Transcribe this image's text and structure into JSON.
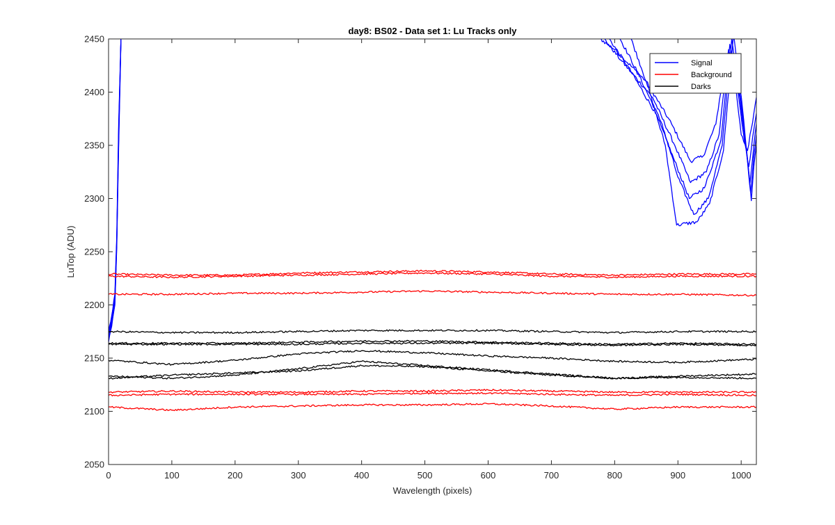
{
  "chart_data": {
    "type": "line",
    "title": "day8: BS02 - Data set 1: Lu Tracks only",
    "xlabel": "Wavelength (pixels)",
    "ylabel": "LuTop (ADU)",
    "xlim": [
      0,
      1024
    ],
    "ylim": [
      2050,
      2450
    ],
    "xticks": [
      0,
      100,
      200,
      300,
      400,
      500,
      600,
      700,
      800,
      900,
      1000
    ],
    "yticks": [
      2050,
      2100,
      2150,
      2200,
      2250,
      2300,
      2350,
      2400,
      2450
    ],
    "grid": false,
    "legend_position": "top-right",
    "colors": {
      "Signal": "#0000ff",
      "Background": "#ff0000",
      "Darks": "#000000"
    },
    "legend": [
      "Signal",
      "Background",
      "Darks"
    ],
    "series": [
      {
        "group": "Signal",
        "x": [
          0,
          5,
          10,
          13,
          16,
          20
        ],
        "y": [
          2170,
          2185,
          2205,
          2260,
          2360,
          2460
        ]
      },
      {
        "group": "Signal",
        "x": [
          0,
          5,
          10,
          13,
          16,
          20
        ],
        "y": [
          2165,
          2180,
          2200,
          2255,
          2350,
          2460
        ]
      },
      {
        "group": "Signal",
        "x": [
          0,
          5,
          10,
          13,
          16,
          20
        ],
        "y": [
          2175,
          2190,
          2210,
          2265,
          2370,
          2460
        ]
      },
      {
        "group": "Signal",
        "x": [
          0,
          5,
          10,
          13,
          16,
          20
        ],
        "y": [
          2168,
          2182,
          2202,
          2258,
          2355,
          2460
        ]
      },
      {
        "group": "Signal",
        "x": [
          0,
          5,
          10,
          13,
          16,
          20
        ],
        "y": [
          2172,
          2188,
          2207,
          2262,
          2365,
          2460
        ]
      },
      {
        "group": "Signal",
        "x": [
          755,
          800,
          850,
          890,
          920,
          940,
          960,
          975,
          990,
          1000,
          1010,
          1020,
          1024
        ],
        "y": [
          2460,
          2440,
          2410,
          2370,
          2335,
          2340,
          2370,
          2430,
          2410,
          2360,
          2345,
          2380,
          2395
        ]
      },
      {
        "group": "Signal",
        "x": [
          770,
          810,
          860,
          895,
          920,
          945,
          965,
          980,
          995,
          1005,
          1012,
          1020,
          1024
        ],
        "y": [
          2460,
          2430,
          2395,
          2350,
          2315,
          2325,
          2360,
          2440,
          2400,
          2355,
          2330,
          2365,
          2380
        ]
      },
      {
        "group": "Signal",
        "x": [
          780,
          820,
          865,
          895,
          918,
          942,
          968,
          982,
          998,
          1008,
          1014,
          1020,
          1024
        ],
        "y": [
          2460,
          2425,
          2380,
          2335,
          2300,
          2310,
          2355,
          2445,
          2395,
          2345,
          2315,
          2350,
          2370
        ]
      },
      {
        "group": "Signal",
        "x": [
          800,
          835,
          875,
          900,
          925,
          948,
          970,
          985,
          1000,
          1010,
          1015,
          1020,
          1024
        ],
        "y": [
          2460,
          2420,
          2370,
          2320,
          2285,
          2300,
          2350,
          2450,
          2390,
          2335,
          2305,
          2340,
          2360
        ]
      },
      {
        "group": "Signal",
        "x": [
          820,
          850,
          880,
          898,
          930,
          950,
          972,
          988,
          1002,
          1012,
          1016,
          1020,
          1024
        ],
        "y": [
          2460,
          2410,
          2350,
          2275,
          2278,
          2295,
          2345,
          2455,
          2385,
          2325,
          2298,
          2330,
          2350
        ]
      },
      {
        "group": "Background",
        "x": [
          0,
          100,
          200,
          300,
          400,
          500,
          600,
          700,
          800,
          900,
          1024
        ],
        "y": [
          2229,
          2228,
          2228,
          2230,
          2231,
          2232,
          2231,
          2229,
          2228,
          2229,
          2229
        ]
      },
      {
        "group": "Background",
        "x": [
          0,
          100,
          200,
          300,
          400,
          500,
          600,
          700,
          800,
          900,
          1024
        ],
        "y": [
          2227,
          2226,
          2227,
          2228,
          2229,
          2230,
          2229,
          2227,
          2226,
          2227,
          2227
        ]
      },
      {
        "group": "Background",
        "x": [
          0,
          100,
          200,
          300,
          400,
          500,
          600,
          700,
          800,
          900,
          1024
        ],
        "y": [
          2210,
          2210,
          2211,
          2211,
          2212,
          2213,
          2212,
          2211,
          2210,
          2210,
          2209
        ]
      },
      {
        "group": "Background",
        "x": [
          0,
          100,
          200,
          300,
          400,
          500,
          600,
          700,
          800,
          900,
          1024
        ],
        "y": [
          2118,
          2119,
          2118,
          2118,
          2119,
          2119,
          2120,
          2119,
          2118,
          2118,
          2118
        ]
      },
      {
        "group": "Background",
        "x": [
          0,
          100,
          200,
          300,
          400,
          500,
          600,
          700,
          800,
          900,
          1024
        ],
        "y": [
          2115,
          2116,
          2116,
          2116,
          2116,
          2117,
          2117,
          2116,
          2115,
          2116,
          2115
        ]
      },
      {
        "group": "Background",
        "x": [
          0,
          100,
          200,
          300,
          400,
          500,
          600,
          700,
          800,
          900,
          1024
        ],
        "y": [
          2104,
          2101,
          2104,
          2105,
          2106,
          2106,
          2107,
          2105,
          2102,
          2104,
          2104
        ]
      },
      {
        "group": "Darks",
        "x": [
          0,
          100,
          200,
          300,
          400,
          500,
          600,
          700,
          800,
          900,
          1024
        ],
        "y": [
          2175,
          2174,
          2174,
          2175,
          2176,
          2176,
          2176,
          2175,
          2174,
          2175,
          2175
        ]
      },
      {
        "group": "Darks",
        "x": [
          0,
          100,
          200,
          300,
          400,
          500,
          600,
          700,
          800,
          900,
          1024
        ],
        "y": [
          2164,
          2164,
          2164,
          2165,
          2166,
          2166,
          2165,
          2164,
          2163,
          2164,
          2163
        ]
      },
      {
        "group": "Darks",
        "x": [
          0,
          100,
          200,
          300,
          400,
          500,
          600,
          700,
          800,
          900,
          1024
        ],
        "y": [
          2163,
          2163,
          2163,
          2163,
          2164,
          2164,
          2164,
          2163,
          2162,
          2163,
          2162
        ]
      },
      {
        "group": "Darks",
        "x": [
          0,
          100,
          200,
          300,
          400,
          500,
          600,
          700,
          800,
          900,
          1024
        ],
        "y": [
          2148,
          2144,
          2148,
          2154,
          2157,
          2155,
          2152,
          2150,
          2147,
          2146,
          2149
        ]
      },
      {
        "group": "Darks",
        "x": [
          0,
          100,
          200,
          300,
          400,
          500,
          600,
          700,
          800,
          900,
          1024
        ],
        "y": [
          2133,
          2131,
          2134,
          2140,
          2147,
          2143,
          2139,
          2135,
          2131,
          2133,
          2135
        ]
      },
      {
        "group": "Darks",
        "x": [
          0,
          100,
          200,
          300,
          400,
          500,
          600,
          700,
          800,
          900,
          1024
        ],
        "y": [
          2131,
          2134,
          2136,
          2138,
          2143,
          2142,
          2138,
          2134,
          2131,
          2132,
          2131
        ]
      }
    ]
  }
}
